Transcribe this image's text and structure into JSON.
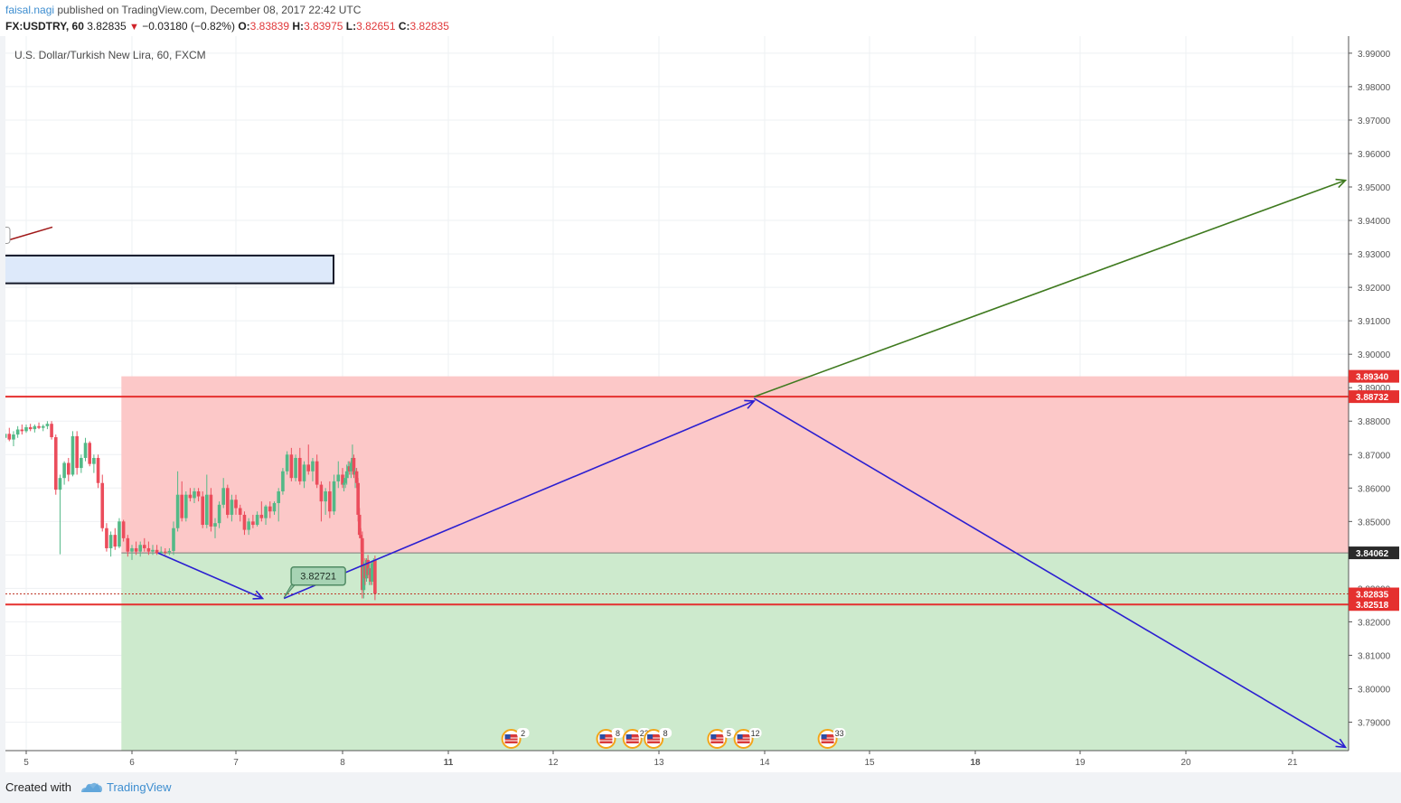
{
  "header": {
    "user": "faisal.nagi",
    "published_text": " published on TradingView.com, December 08, 2017 22:42 UTC",
    "symbol": "FX:USDTRY, 60",
    "last": "3.82835",
    "change": "−0.03180 (−0.82%)",
    "open_label": "O:",
    "open": "3.83839",
    "high_label": "H:",
    "high": "3.83975",
    "low_label": "L:",
    "low": "3.82651",
    "close_label": "C:",
    "close": "3.82835"
  },
  "footer": {
    "created_with": "Created with",
    "brand": "TradingView"
  },
  "colors": {
    "up": "#53b987",
    "down": "#eb4d5c",
    "stop_zone": "#fcc8c8",
    "target_zone": "#cdeacd",
    "level_line": "#e5302f",
    "arrow_blue": "#2b1fd1",
    "arrow_green": "#3f7a1f"
  },
  "chart_data": {
    "type": "candlestick",
    "title": "U.S. Dollar/Turkish New Lira, 60, FXCM",
    "x_ticks": [
      "5",
      "6",
      "7",
      "8",
      "11",
      "12",
      "13",
      "14",
      "15",
      "18",
      "19",
      "20",
      "21"
    ],
    "ylim": [
      3.7815,
      3.9951
    ],
    "y_ticks": [
      "3.99000",
      "3.98000",
      "3.97000",
      "3.96000",
      "3.95000",
      "3.94000",
      "3.93000",
      "3.92000",
      "3.91000",
      "3.90000",
      "3.89000",
      "3.88000",
      "3.87000",
      "3.86000",
      "3.85000",
      "3.84000",
      "3.83000",
      "3.82000",
      "3.81000",
      "3.80000",
      "3.79000"
    ],
    "price_labels": [
      {
        "text": "3.89340",
        "value": 3.8934,
        "color": "#e5302f"
      },
      {
        "text": "3.88732",
        "value": 3.88732,
        "color": "#e5302f"
      },
      {
        "text": "3.84062",
        "value": 3.84062,
        "color": "#2a2a2a"
      },
      {
        "text": "3.82835",
        "value": 3.82835,
        "color": "#e5302f"
      },
      {
        "text": "3.82518",
        "value": 3.82518,
        "color": "#e5302f"
      }
    ],
    "horizontal_levels": [
      3.88732,
      3.82518
    ],
    "position": {
      "entry": 3.84062,
      "stop": 3.8934,
      "target_bottom": 3.7815,
      "start": 5.9,
      "end": 21.5
    },
    "annotation": {
      "text": "3.82721",
      "x": 7.45,
      "y": 3.82721
    },
    "arrows": [
      {
        "color": "blue",
        "from": [
          6.25,
          3.8406
        ],
        "to": [
          7.25,
          3.827
        ]
      },
      {
        "color": "blue",
        "from": [
          7.45,
          3.827
        ],
        "to": [
          13.9,
          3.886
        ]
      },
      {
        "color": "blue",
        "from": [
          13.9,
          3.8868
        ],
        "to": [
          21.5,
          3.7825
        ]
      },
      {
        "color": "green",
        "from": [
          13.9,
          3.8873
        ],
        "to": [
          21.5,
          3.952
        ]
      }
    ],
    "events": [
      {
        "x": 11.6,
        "count": "2"
      },
      {
        "x": 12.5,
        "count": "8"
      },
      {
        "x": 12.75,
        "count": "22"
      },
      {
        "x": 12.95,
        "count": "8"
      },
      {
        "x": 13.55,
        "count": "5"
      },
      {
        "x": 13.8,
        "count": "12"
      },
      {
        "x": 14.6,
        "count": "33"
      }
    ],
    "candles": [
      [
        4.8,
        3.875,
        3.8775,
        3.8735,
        3.8762
      ],
      [
        4.84,
        3.8762,
        3.878,
        3.874,
        3.8745
      ],
      [
        4.88,
        3.8745,
        3.877,
        3.8725,
        3.876
      ],
      [
        4.92,
        3.876,
        3.8785,
        3.875,
        3.8775
      ],
      [
        4.96,
        3.8775,
        3.879,
        3.876,
        3.877
      ],
      [
        5.0,
        3.877,
        3.879,
        3.8765,
        3.8782
      ],
      [
        5.04,
        3.8782,
        3.8792,
        3.877,
        3.8776
      ],
      [
        5.08,
        3.8776,
        3.879,
        3.8766,
        3.8785
      ],
      [
        5.12,
        3.8785,
        3.8796,
        3.8776,
        3.878
      ],
      [
        5.16,
        3.878,
        3.879,
        3.877,
        3.8785
      ],
      [
        5.2,
        3.8785,
        3.88,
        3.8776,
        3.8792
      ],
      [
        5.24,
        3.8792,
        3.88,
        3.8745,
        3.8752
      ],
      [
        5.28,
        3.8752,
        3.876,
        3.858,
        3.8595
      ],
      [
        5.32,
        3.8595,
        3.864,
        3.8402,
        3.863
      ],
      [
        5.36,
        3.863,
        3.868,
        3.861,
        3.8675
      ],
      [
        5.4,
        3.8675,
        3.869,
        3.862,
        3.864
      ],
      [
        5.44,
        3.864,
        3.877,
        3.8635,
        3.8755
      ],
      [
        5.48,
        3.8755,
        3.877,
        3.864,
        3.866
      ],
      [
        5.52,
        3.866,
        3.87,
        3.8645,
        3.869
      ],
      [
        5.56,
        3.869,
        3.875,
        3.868,
        3.8735
      ],
      [
        5.6,
        3.8735,
        3.874,
        3.8665,
        3.8672
      ],
      [
        5.64,
        3.8672,
        3.87,
        3.8645,
        3.869
      ],
      [
        5.68,
        3.869,
        3.87,
        3.86,
        3.8615
      ],
      [
        5.72,
        3.8615,
        3.864,
        3.847,
        3.848
      ],
      [
        5.76,
        3.848,
        3.8495,
        3.841,
        3.842
      ],
      [
        5.8,
        3.842,
        3.847,
        3.8395,
        3.846
      ],
      [
        5.84,
        3.846,
        3.848,
        3.8415,
        3.8425
      ],
      [
        5.88,
        3.8425,
        3.851,
        3.842,
        3.85
      ],
      [
        5.92,
        3.85,
        3.8505,
        3.844,
        3.845
      ],
      [
        5.96,
        3.845,
        3.846,
        3.8395,
        3.841
      ],
      [
        6.0,
        3.841,
        3.843,
        3.8385,
        3.842
      ],
      [
        6.04,
        3.842,
        3.844,
        3.84,
        3.841
      ],
      [
        6.08,
        3.841,
        3.844,
        3.8395,
        3.843
      ],
      [
        6.12,
        3.843,
        3.845,
        3.841,
        3.842
      ],
      [
        6.16,
        3.842,
        3.844,
        3.84,
        3.841
      ],
      [
        6.2,
        3.841,
        3.843,
        3.84,
        3.8415
      ],
      [
        6.24,
        3.8415,
        3.843,
        3.84,
        3.8405
      ],
      [
        6.28,
        3.8405,
        3.8425,
        3.84,
        3.841
      ],
      [
        6.32,
        3.841,
        3.842,
        3.84,
        3.8408
      ],
      [
        6.36,
        3.8408,
        3.842,
        3.84,
        3.8412
      ],
      [
        6.4,
        3.8412,
        3.85,
        3.84,
        3.848
      ],
      [
        6.44,
        3.848,
        3.865,
        3.847,
        3.858
      ],
      [
        6.48,
        3.858,
        3.862,
        3.85,
        3.851
      ],
      [
        6.52,
        3.851,
        3.859,
        3.85,
        3.858
      ],
      [
        6.56,
        3.858,
        3.86,
        3.856,
        3.857
      ],
      [
        6.6,
        3.857,
        3.86,
        3.8555,
        3.859
      ],
      [
        6.64,
        3.859,
        3.86,
        3.856,
        3.8575
      ],
      [
        6.68,
        3.8575,
        3.859,
        3.848,
        3.849
      ],
      [
        6.72,
        3.849,
        3.864,
        3.848,
        3.858
      ],
      [
        6.76,
        3.858,
        3.86,
        3.847,
        3.8485
      ],
      [
        6.8,
        3.8485,
        3.851,
        3.845,
        3.8495
      ],
      [
        6.84,
        3.8495,
        3.856,
        3.848,
        3.855
      ],
      [
        6.88,
        3.855,
        3.863,
        3.854,
        3.86
      ],
      [
        6.92,
        3.86,
        3.861,
        3.851,
        3.852
      ],
      [
        6.96,
        3.852,
        3.858,
        3.85,
        3.8565
      ],
      [
        7.0,
        3.8565,
        3.858,
        3.852,
        3.854
      ],
      [
        7.04,
        3.854,
        3.855,
        3.85,
        3.852
      ],
      [
        7.08,
        3.852,
        3.853,
        3.846,
        3.8475
      ],
      [
        7.12,
        3.8475,
        3.851,
        3.846,
        3.85
      ],
      [
        7.16,
        3.85,
        3.852,
        3.848,
        3.849
      ],
      [
        7.2,
        3.849,
        3.853,
        3.8485,
        3.852
      ],
      [
        7.24,
        3.852,
        3.856,
        3.85,
        3.851
      ],
      [
        7.28,
        3.851,
        3.855,
        3.849,
        3.8545
      ],
      [
        7.32,
        3.8545,
        3.856,
        3.851,
        3.853
      ],
      [
        7.36,
        3.853,
        3.856,
        3.852,
        3.8555
      ],
      [
        7.4,
        3.8555,
        3.86,
        3.85,
        3.859
      ],
      [
        7.44,
        3.859,
        3.866,
        3.858,
        3.865
      ],
      [
        7.48,
        3.865,
        3.871,
        3.864,
        3.87
      ],
      [
        7.52,
        3.87,
        3.872,
        3.862,
        3.863
      ],
      [
        7.56,
        3.863,
        3.87,
        3.862,
        3.869
      ],
      [
        7.6,
        3.869,
        3.872,
        3.861,
        3.862
      ],
      [
        7.64,
        3.862,
        3.868,
        3.86,
        3.867
      ],
      [
        7.68,
        3.867,
        3.873,
        3.864,
        3.865
      ],
      [
        7.72,
        3.865,
        3.869,
        3.862,
        3.868
      ],
      [
        7.76,
        3.868,
        3.87,
        3.86,
        3.861
      ],
      [
        7.8,
        3.861,
        3.862,
        3.85,
        3.856
      ],
      [
        7.84,
        3.856,
        3.86,
        3.852,
        3.859
      ],
      [
        7.88,
        3.859,
        3.862,
        3.851,
        3.853
      ],
      [
        7.92,
        3.853,
        3.864,
        3.852,
        3.862
      ],
      [
        7.96,
        3.862,
        3.868,
        3.86,
        3.864
      ],
      [
        8.0,
        3.864,
        3.866,
        3.86,
        3.861
      ],
      [
        8.04,
        3.861,
        3.863,
        3.859,
        3.8615
      ],
      [
        8.08,
        3.8615,
        3.864,
        3.86,
        3.863
      ],
      [
        8.12,
        3.863,
        3.867,
        3.861,
        3.865
      ],
      [
        8.16,
        3.865,
        3.868,
        3.863,
        3.8665
      ],
      [
        8.2,
        3.8665,
        3.868,
        3.864,
        3.865
      ],
      [
        8.24,
        3.865,
        3.868,
        3.863,
        3.8675
      ],
      [
        8.28,
        3.8675,
        3.873,
        3.8655,
        3.869
      ],
      [
        8.32,
        3.869,
        3.87,
        3.863,
        3.864
      ],
      [
        8.36,
        3.864,
        3.866,
        3.86,
        3.865
      ],
      [
        8.4,
        3.865,
        3.866,
        3.86,
        3.8615
      ],
      [
        8.44,
        3.8615,
        3.863,
        3.85,
        3.852
      ],
      [
        8.48,
        3.852,
        3.854,
        3.845,
        3.846
      ],
      [
        8.52,
        3.846,
        3.848,
        3.841,
        3.845
      ],
      [
        8.56,
        3.845,
        3.847,
        3.827,
        3.8295
      ],
      [
        8.6,
        3.8295,
        3.838,
        3.827,
        3.837
      ],
      [
        8.64,
        3.837,
        3.839,
        3.831,
        3.833
      ],
      [
        8.68,
        3.833,
        3.839,
        3.832,
        3.8385
      ],
      [
        8.72,
        3.8385,
        3.84,
        3.833,
        3.834
      ],
      [
        8.76,
        3.834,
        3.837,
        3.831,
        3.836
      ],
      [
        8.8,
        3.836,
        3.838,
        3.831,
        3.832
      ],
      [
        8.84,
        3.832,
        3.838,
        3.831,
        3.8375
      ],
      [
        8.88,
        3.8375,
        3.839,
        3.835,
        3.8384
      ],
      [
        8.92,
        3.8384,
        3.8398,
        3.8265,
        3.8284
      ]
    ]
  }
}
